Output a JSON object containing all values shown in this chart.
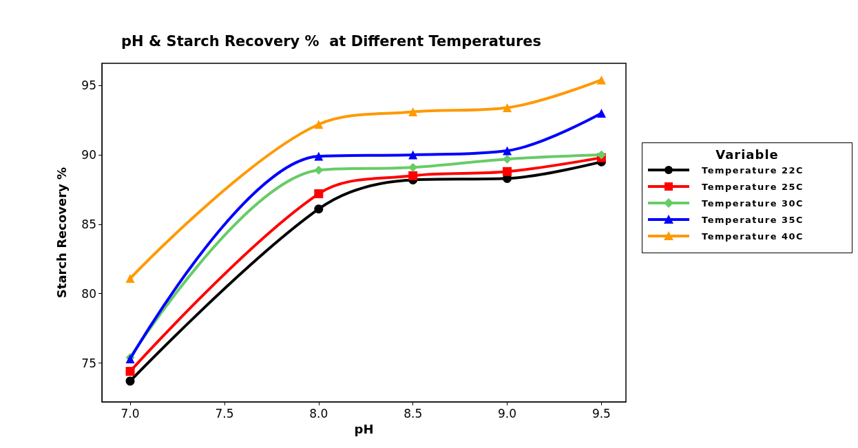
{
  "chart_data": {
    "type": "line",
    "title": "pH & Starch Recovery %  at Different Temperatures",
    "xlabel": "pH",
    "ylabel": "Starch Recovery %",
    "legend_title": "Variable",
    "legend": "right",
    "x": [
      7.0,
      8.0,
      8.5,
      9.0,
      9.5
    ],
    "xlim": [
      6.85,
      9.63
    ],
    "xticks": [
      {
        "value": 7,
        "label": "7.0"
      },
      {
        "value": 7.5,
        "label": "7.5"
      },
      {
        "value": 8,
        "label": "8.0"
      },
      {
        "value": 8.5,
        "label": "8.5"
      },
      {
        "value": 9,
        "label": "9.0"
      },
      {
        "value": 9.5,
        "label": "9.5"
      }
    ],
    "ylim": [
      72.2,
      96.6
    ],
    "yticks": [
      75,
      80,
      85,
      90,
      95
    ],
    "grid": false,
    "line_style": "solid",
    "series": [
      {
        "name": "Temperature 22C",
        "color": "#000000",
        "marker": "circle",
        "values": [
          73.7,
          86.1,
          88.2,
          88.3,
          89.5
        ]
      },
      {
        "name": "Temperature 25C",
        "color": "#ff0000",
        "marker": "square",
        "values": [
          74.4,
          87.2,
          88.5,
          88.8,
          89.8
        ]
      },
      {
        "name": "Temperature 30C",
        "color": "#66cc66",
        "marker": "diamond",
        "values": [
          75.4,
          88.9,
          89.1,
          89.7,
          90.0
        ]
      },
      {
        "name": "Temperature 35C",
        "color": "#0000ff",
        "marker": "triangle",
        "values": [
          75.3,
          89.9,
          90.0,
          90.3,
          93.0
        ]
      },
      {
        "name": "Temperature 40C",
        "color": "#ff9900",
        "marker": "triangle",
        "values": [
          81.1,
          92.2,
          93.1,
          93.4,
          95.4
        ]
      }
    ]
  }
}
